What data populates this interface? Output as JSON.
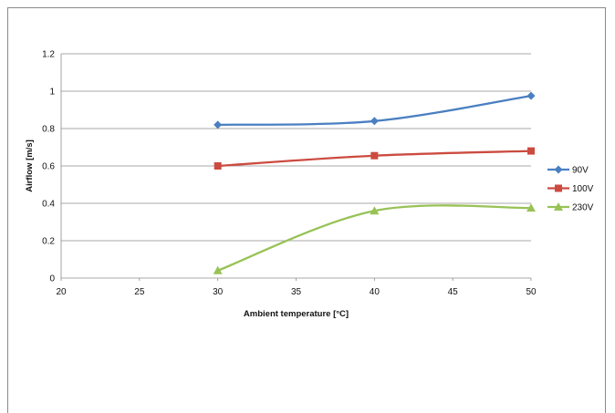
{
  "chart_data": {
    "type": "line",
    "title": "",
    "xlabel": "Ambient temperature [°C]",
    "ylabel": "Airflow [m/s]",
    "xlim": [
      20,
      50
    ],
    "ylim": [
      0,
      1.2
    ],
    "x_ticks": [
      "20",
      "25",
      "30",
      "35",
      "40",
      "45",
      "50"
    ],
    "y_ticks": [
      "0",
      "0.2",
      "0.4",
      "0.6",
      "0.8",
      "1",
      "1.2"
    ],
    "grid": "horizontal",
    "legend_position": "right",
    "smooth": true,
    "series": [
      {
        "name": "90V",
        "color": "#4a7fc1",
        "marker": "diamond",
        "x": [
          30,
          40,
          50
        ],
        "y": [
          0.82,
          0.84,
          0.975
        ]
      },
      {
        "name": "100V",
        "color": "#cc4b40",
        "marker": "square",
        "x": [
          30,
          40,
          50
        ],
        "y": [
          0.6,
          0.655,
          0.68
        ]
      },
      {
        "name": "230V",
        "color": "#98c256",
        "marker": "triangle",
        "x": [
          30,
          40,
          50
        ],
        "y": [
          0.04,
          0.36,
          0.375
        ]
      }
    ]
  }
}
